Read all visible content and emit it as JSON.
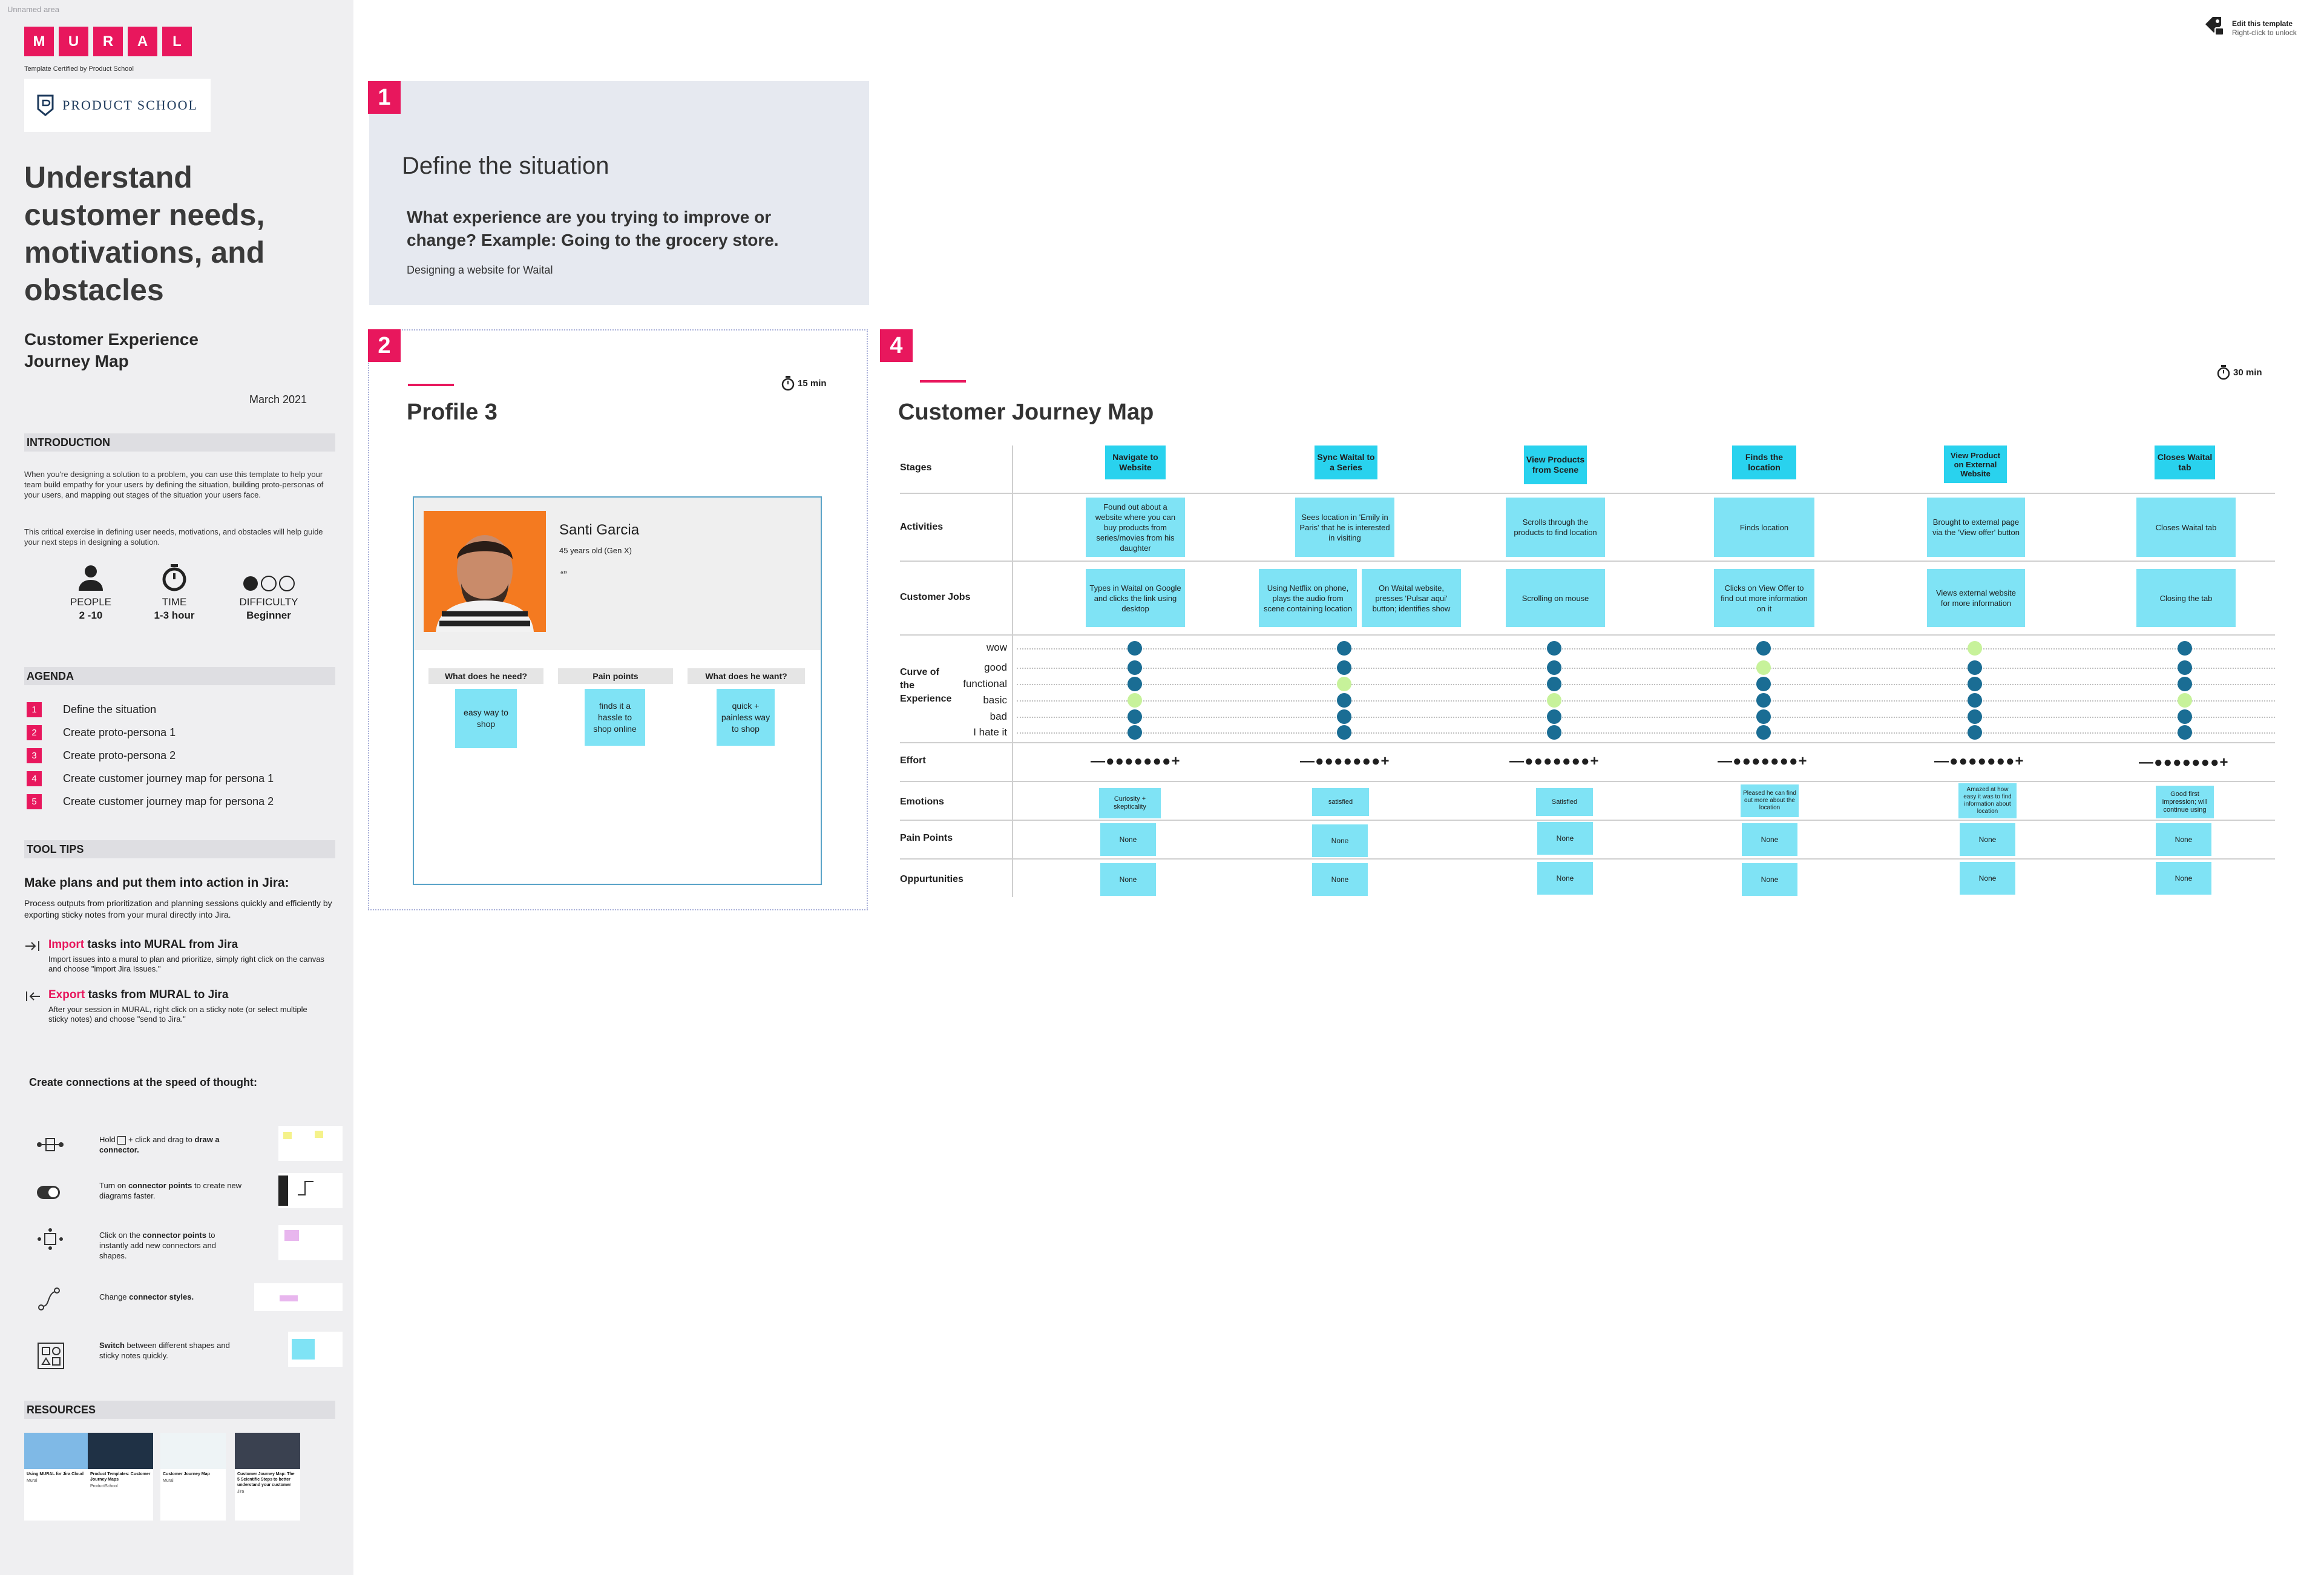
{
  "area_label": "Unnamed area",
  "brand": {
    "letters": [
      "M",
      "U",
      "R",
      "A",
      "L"
    ],
    "certified": "Template Certified by Product School",
    "partner": "PRODUCT SCHOOL"
  },
  "sidebar": {
    "title": "Understand customer needs, motivations, and obstacles",
    "subtitle": "Customer Experience Journey Map",
    "date": "March 2021",
    "introduction": {
      "heading": "INTRODUCTION",
      "p1": "When you're designing a solution to a problem, you can use this template to help your team build empathy for your users by defining the situation, building proto-personas of your users, and mapping out stages of the situation your users face.",
      "p2": "This critical exercise in defining user needs, motivations, and obstacles will help guide your next steps in designing a solution."
    },
    "stats": [
      {
        "label": "PEOPLE",
        "value": "2 -10",
        "icon": "person-icon"
      },
      {
        "label": "TIME",
        "value": "1-3 hour",
        "icon": "stopwatch-icon"
      },
      {
        "label": "DIFFICULTY",
        "value": "Beginner",
        "icon": "difficulty-dots-icon"
      }
    ],
    "agenda": {
      "heading": "AGENDA",
      "items": [
        {
          "num": "1",
          "label": "Define the situation"
        },
        {
          "num": "2",
          "label": "Create proto-persona 1"
        },
        {
          "num": "3",
          "label": "Create proto-persona 2"
        },
        {
          "num": "4",
          "label": "Create customer journey map for persona 1"
        },
        {
          "num": "5",
          "label": "Create customer journey map for persona 2"
        }
      ]
    },
    "tool_tips": {
      "heading": "TOOL TIPS",
      "title": "Make plans and put them into action in Jira:",
      "desc": "Process outputs from prioritization and planning sessions quickly and efficiently by exporting sticky notes from your mural directly into Jira.",
      "import_keyword": "Import",
      "import_title": " tasks into MURAL from Jira",
      "import_desc": "Import issues into a mural to plan and prioritize, simply right click on the canvas and choose \"import Jira Issues.\"",
      "export_keyword": "Export",
      "export_title": " tasks from MURAL to Jira",
      "export_desc": "After your session in MURAL, right click on a sticky note (or select multiple sticky notes) and choose \"send to Jira.\""
    },
    "connections": {
      "title": "Create connections at the speed of thought:",
      "items": [
        {
          "icon": "connector-icon",
          "pre": "Hold ",
          "bold": "draw a connector.",
          "post": "+ click and drag to "
        },
        {
          "icon": "toggle-icon",
          "pre": "Turn on ",
          "bold": "connector points",
          "post": " to create new diagrams faster."
        },
        {
          "icon": "connector-points-icon",
          "pre": "Click on the ",
          "bold": "connector points",
          "post": " to instantly add new connectors and shapes."
        },
        {
          "icon": "connector-style-icon",
          "pre": "Change ",
          "bold": "connector styles.",
          "post": ""
        },
        {
          "icon": "shapes-icon",
          "pre": "",
          "bold": "Switch",
          "post": " between different shapes and sticky notes quickly."
        }
      ]
    },
    "resources": {
      "heading": "RESOURCES",
      "cards": [
        {
          "title": "Using MURAL for Jira Cloud",
          "footer": "Mural"
        },
        {
          "title": "Product Templates: Customer Journey Maps",
          "footer": "ProductSchool"
        },
        {
          "title": "Customer Journey Map",
          "footer": "Mural"
        },
        {
          "title": "Customer Journey Map: The 5 Scientific Steps to better understand your customer",
          "footer": "Jira"
        }
      ]
    }
  },
  "edit_template": {
    "line1": "Edit this template",
    "line2": "Right-click to unlock"
  },
  "section1": {
    "num": "1",
    "title": "Define the situation",
    "question": "What experience are you trying to improve or change? Example: Going to the grocery store.",
    "answer": "Designing a website for Waital"
  },
  "section2": {
    "num": "2",
    "title": "Profile 3",
    "timer": "15 min",
    "persona": {
      "name": "Santi Garcia",
      "age": "45 years old (Gen X)",
      "quote": "“”"
    },
    "columns": [
      {
        "heading": "What does he need?",
        "sticky": "easy way to shop"
      },
      {
        "heading": "Pain points",
        "sticky": "finds it a hassle to shop online"
      },
      {
        "heading": "What does he want?",
        "sticky": "quick + painless way to shop"
      }
    ]
  },
  "section4": {
    "num": "4",
    "title": "Customer Journey Map",
    "timer": "30 min",
    "row_labels": {
      "stages": "Stages",
      "activities": "Activities",
      "jobs": "Customer Jobs",
      "curve": "Curve of the Experience",
      "effort": "Effort",
      "emotions": "Emotions",
      "pain": "Pain Points",
      "opp": "Oppurtunities"
    },
    "curve_levels": [
      "wow",
      "good",
      "functional",
      "basic",
      "bad",
      "I hate it"
    ],
    "columns": [
      {
        "stage": "Navigate to Website",
        "activity": "Found out about a website where you can buy products from series/movies from his daughter",
        "jobs": [
          "Types in Waital on Google and clicks the link using desktop"
        ],
        "curve": "basic",
        "effort": "—●●●●●●●+",
        "emotion": "Curiosity + skepticality",
        "pain": "None",
        "opp": "None"
      },
      {
        "stage": "Sync Waital to a Series",
        "activity": "Sees location in 'Emily in Paris' that he is interested in visiting",
        "jobs": [
          "Using Netflix on phone, plays the audio from scene containing location",
          "On Waital website, presses 'Pulsar aqui' button; identifies show"
        ],
        "curve": "functional",
        "effort": "—●●●●●●●+",
        "emotion": "satisfied",
        "pain": "None",
        "opp": "None"
      },
      {
        "stage": "View Products from Scene",
        "activity": "Scrolls through the products to find location",
        "jobs": [
          "Scrolling on mouse"
        ],
        "curve": "basic",
        "effort": "—●●●●●●●+",
        "emotion": "Satisfied",
        "pain": "None",
        "opp": "None"
      },
      {
        "stage": "Finds the location",
        "activity": "Finds location",
        "jobs": [
          "Clicks on View Offer to find out more information on it"
        ],
        "curve": "good",
        "effort": "—●●●●●●●+",
        "emotion": "Pleased he can find out more about the location",
        "pain": "None",
        "opp": "None"
      },
      {
        "stage": "View Product on External Website",
        "activity": "Brought to external page via the 'View offer' button",
        "jobs": [
          "Views external website for more information"
        ],
        "curve": "wow",
        "effort": "—●●●●●●●+",
        "emotion": "Amazed at how easy it was to find information about location",
        "pain": "None",
        "opp": "None"
      },
      {
        "stage": "Closes Waital tab",
        "activity": "Closes Waital tab",
        "jobs": [
          "Closing the tab"
        ],
        "curve": "basic",
        "effort": "—●●●●●●●+",
        "emotion": "Good first impression; will continue using",
        "pain": "None",
        "opp": "None"
      }
    ]
  },
  "colors": {
    "brand": "#e8175d",
    "sticky": "#7fe3f5",
    "stage": "#29d2ee",
    "dot": "#1a6d94",
    "highlight": "#c7f29a"
  }
}
